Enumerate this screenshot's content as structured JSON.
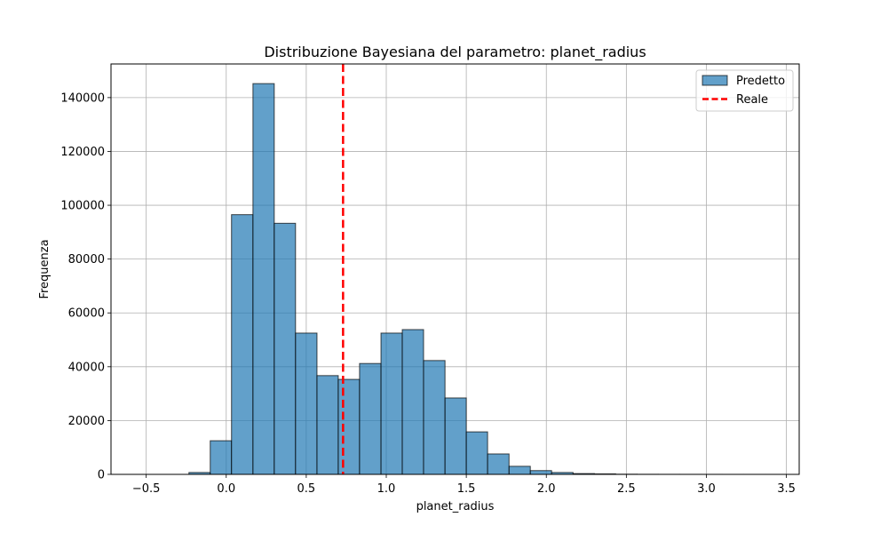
{
  "chart_data": {
    "type": "bar",
    "title": "Distribuzione Bayesiana del parametro: planet_radius",
    "xlabel": "planet_radius",
    "ylabel": "Frequenza",
    "xlim": [
      -0.72,
      3.58
    ],
    "ylim": [
      0,
      152500
    ],
    "xticks": [
      -0.5,
      0.0,
      0.5,
      1.0,
      1.5,
      2.0,
      2.5,
      3.0,
      3.5
    ],
    "xtick_labels": [
      "−0.5",
      "0.0",
      "0.5",
      "1.0",
      "1.5",
      "2.0",
      "2.5",
      "3.0",
      "3.5"
    ],
    "yticks": [
      0,
      20000,
      40000,
      60000,
      80000,
      100000,
      120000,
      140000
    ],
    "ytick_labels": [
      "0",
      "20000",
      "40000",
      "60000",
      "80000",
      "100000",
      "120000",
      "140000"
    ],
    "grid": true,
    "legend_position": "top-right",
    "series": [
      {
        "name": "Predetto",
        "type": "histogram",
        "color": "#1f77b4",
        "edges": [
          -0.5,
          -0.367,
          -0.233,
          -0.1,
          0.033,
          0.167,
          0.3,
          0.433,
          0.567,
          0.7,
          0.833,
          0.967,
          1.1,
          1.233,
          1.367,
          1.5,
          1.633,
          1.767,
          1.9,
          2.033,
          2.167,
          2.3,
          2.433,
          2.567,
          2.7,
          2.833,
          2.967,
          3.1,
          3.233,
          3.367,
          3.5
        ],
        "values": [
          0,
          0,
          700,
          12500,
          96500,
          145200,
          93300,
          52500,
          36700,
          35300,
          41200,
          52500,
          53800,
          42300,
          28400,
          15800,
          7600,
          3000,
          1400,
          700,
          300,
          200,
          60,
          30,
          15,
          10,
          5,
          3,
          2,
          1
        ]
      },
      {
        "name": "Reale",
        "type": "vline",
        "color": "#ff0000",
        "x": 0.73
      }
    ]
  }
}
